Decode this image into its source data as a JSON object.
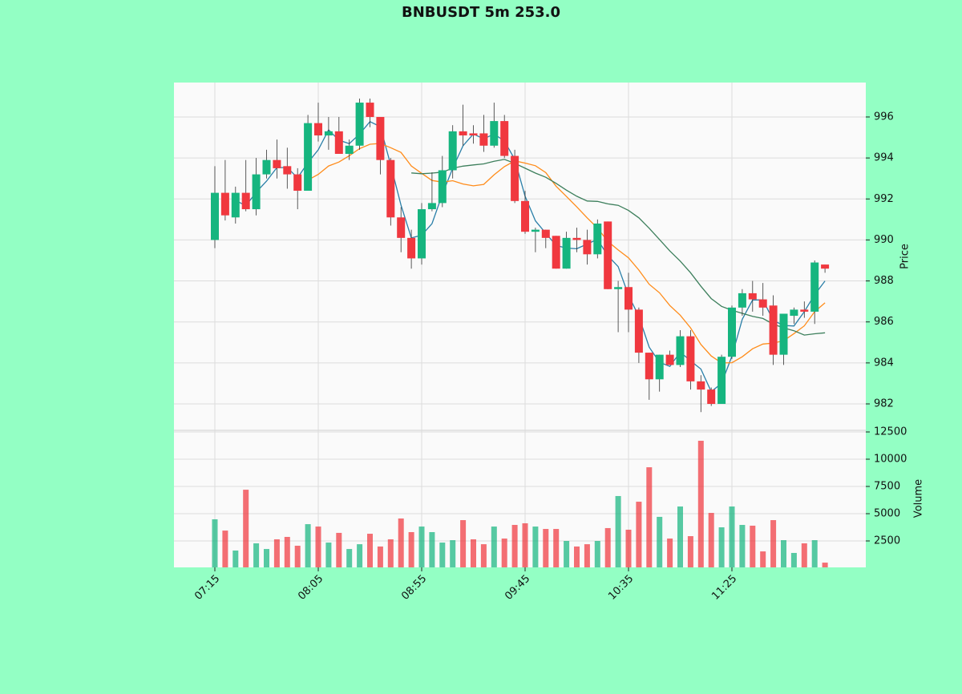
{
  "chart_data": {
    "type": "candlestick",
    "title": "BNBUSDT 5m 253.0",
    "ylabel": "Price",
    "volume_label": "Volume",
    "categories": [
      "07:15",
      null,
      null,
      null,
      null,
      null,
      null,
      null,
      null,
      null,
      "08:05",
      null,
      null,
      null,
      null,
      null,
      null,
      null,
      null,
      null,
      "08:55",
      null,
      null,
      null,
      null,
      null,
      null,
      null,
      null,
      null,
      "09:45",
      null,
      null,
      null,
      null,
      null,
      null,
      null,
      null,
      null,
      "10:35",
      null,
      null,
      null,
      null,
      null,
      null,
      null,
      null,
      null,
      "11:25",
      null,
      null,
      null,
      null,
      null,
      null,
      null,
      null,
      null
    ],
    "open": [
      990.0,
      992.3,
      991.1,
      992.3,
      991.5,
      993.2,
      993.9,
      993.6,
      993.2,
      992.4,
      995.7,
      995.1,
      995.3,
      994.2,
      994.6,
      996.7,
      996.0,
      993.9,
      991.1,
      990.1,
      989.1,
      991.5,
      991.8,
      993.4,
      995.3,
      995.2,
      995.2,
      994.6,
      995.8,
      994.1,
      991.9,
      990.4,
      990.5,
      990.2,
      988.6,
      990.1,
      990.0,
      989.3,
      990.9,
      987.6,
      987.7,
      986.6,
      984.5,
      983.2,
      984.4,
      983.9,
      985.3,
      983.1,
      982.7,
      982.0,
      984.3,
      986.7,
      987.4,
      987.1,
      986.8,
      984.4,
      986.3,
      986.6,
      986.5,
      988.8
    ],
    "high": [
      993.6,
      993.9,
      992.6,
      993.9,
      994.0,
      994.4,
      994.9,
      994.5,
      993.5,
      996.1,
      996.7,
      996.0,
      996.0,
      994.9,
      996.9,
      996.9,
      996.0,
      994.0,
      991.6,
      990.5,
      991.8,
      993.3,
      994.1,
      995.6,
      996.6,
      995.6,
      996.1,
      996.7,
      996.1,
      994.4,
      992.4,
      990.6,
      990.5,
      990.2,
      990.4,
      990.6,
      990.5,
      991.0,
      990.9,
      988.0,
      988.4,
      986.7,
      984.5,
      984.4,
      984.6,
      985.6,
      985.6,
      983.4,
      982.8,
      984.4,
      986.8,
      987.6,
      988.0,
      987.9,
      987.3,
      986.4,
      986.7,
      987.0,
      989.0,
      988.8
    ],
    "low": [
      989.6,
      990.95,
      990.8,
      991.4,
      991.2,
      993.0,
      993.0,
      992.5,
      991.5,
      992.4,
      994.8,
      994.4,
      994.2,
      993.9,
      994.4,
      995.5,
      993.2,
      990.7,
      989.4,
      988.6,
      988.8,
      991.4,
      991.6,
      993.0,
      994.6,
      994.7,
      994.3,
      994.5,
      994.0,
      991.8,
      990.3,
      989.4,
      989.6,
      988.6,
      988.6,
      989.4,
      988.8,
      989.1,
      987.6,
      985.5,
      985.5,
      984.0,
      982.2,
      982.6,
      983.9,
      983.8,
      982.7,
      981.6,
      981.9,
      982.0,
      984.2,
      986.3,
      986.5,
      986.3,
      983.9,
      983.9,
      985.9,
      986.2,
      985.9,
      988.4
    ],
    "close": [
      992.3,
      991.2,
      992.3,
      991.5,
      993.2,
      993.9,
      993.5,
      993.2,
      992.4,
      995.7,
      995.1,
      995.3,
      994.2,
      994.6,
      996.7,
      996.0,
      993.9,
      991.1,
      990.1,
      989.1,
      991.5,
      991.8,
      993.4,
      995.3,
      995.1,
      995.1,
      994.6,
      995.8,
      994.1,
      991.9,
      990.4,
      990.5,
      990.1,
      988.6,
      990.1,
      990.0,
      989.3,
      990.8,
      987.6,
      987.7,
      986.6,
      984.5,
      983.2,
      984.4,
      983.9,
      985.3,
      983.1,
      982.7,
      982.0,
      984.3,
      986.7,
      987.4,
      987.1,
      986.7,
      984.4,
      986.4,
      986.6,
      986.5,
      988.9,
      988.6
    ],
    "volume": [
      4485,
      3450,
      1620,
      7200,
      2280,
      1760,
      2650,
      2870,
      2060,
      4040,
      3820,
      2350,
      3240,
      1760,
      2200,
      3160,
      1990,
      2650,
      4560,
      3310,
      3820,
      3310,
      2350,
      2570,
      4410,
      2650,
      2200,
      3820,
      2720,
      3970,
      4120,
      3820,
      3600,
      3600,
      2500,
      1990,
      2200,
      2500,
      3680,
      6620,
      3530,
      6100,
      9260,
      4710,
      2720,
      5660,
      2940,
      11690,
      5070,
      3750,
      5660,
      3970,
      3900,
      1540,
      4410,
      2570,
      1400,
      2280,
      2570,
      510
    ],
    "lines": [
      {
        "color": "#2a7fa8",
        "values": [
          null,
          null,
          991.93,
          991.67,
          992.33,
          992.87,
          993.53,
          993.53,
          993.03,
          993.77,
          994.4,
          995.37,
          994.87,
          994.7,
          995.17,
          995.77,
          995.53,
          993.67,
          991.7,
          990.1,
          990.23,
          990.8,
          992.23,
          993.5,
          994.6,
          995.17,
          994.93,
          995.17,
          994.83,
          993.93,
          992.13,
          990.93,
          990.33,
          989.73,
          989.6,
          989.57,
          989.8,
          990.03,
          989.23,
          988.7,
          987.3,
          986.27,
          984.77,
          984.03,
          983.83,
          984.53,
          984.1,
          983.7,
          982.6,
          983.0,
          984.33,
          986.13,
          987.07,
          987.07,
          986.07,
          985.83,
          985.8,
          986.5,
          987.33,
          988.0
        ]
      },
      {
        "color": "#ff8c1a",
        "values": [
          null,
          null,
          null,
          null,
          null,
          null,
          null,
          null,
          null,
          992.92,
          993.2,
          993.61,
          993.8,
          994.11,
          994.46,
          994.67,
          994.71,
          994.5,
          994.27,
          993.61,
          993.25,
          992.9,
          992.82,
          992.89,
          992.73,
          992.64,
          992.71,
          993.18,
          993.58,
          993.86,
          993.75,
          993.62,
          993.29,
          992.62,
          992.12,
          991.61,
          991.08,
          990.58,
          989.93,
          989.51,
          989.13,
          988.53,
          987.84,
          987.42,
          986.8,
          986.33,
          985.71,
          984.9,
          984.34,
          984.0,
          984.01,
          984.3,
          984.69,
          984.92,
          984.97,
          985.08,
          985.43,
          985.81,
          986.5,
          986.93
        ]
      },
      {
        "color": "#3d7f5c",
        "values": [
          null,
          null,
          null,
          null,
          null,
          null,
          null,
          null,
          null,
          null,
          null,
          null,
          null,
          null,
          null,
          null,
          null,
          null,
          null,
          993.27,
          993.23,
          993.26,
          993.31,
          993.5,
          993.6,
          993.66,
          993.71,
          993.84,
          993.93,
          993.74,
          993.5,
          993.26,
          993.06,
          992.76,
          992.43,
          992.13,
          991.9,
          991.88,
          991.76,
          991.69,
          991.44,
          991.08,
          990.57,
          990.02,
          989.46,
          988.97,
          988.4,
          987.74,
          987.14,
          986.76,
          986.57,
          986.42,
          986.27,
          986.17,
          985.89,
          985.71,
          985.57,
          985.36,
          985.42,
          985.47
        ]
      }
    ],
    "up_color": "#16b57f",
    "down_color": "#f0383f",
    "ylim": [
      980.71,
      997.68
    ],
    "yticks": [
      982,
      984,
      986,
      988,
      990,
      992,
      994,
      996
    ],
    "volume_ylim": [
      74,
      12647
    ],
    "volume_yticks": [
      2500,
      5000,
      7500,
      10000,
      12500
    ],
    "grid": true
  }
}
